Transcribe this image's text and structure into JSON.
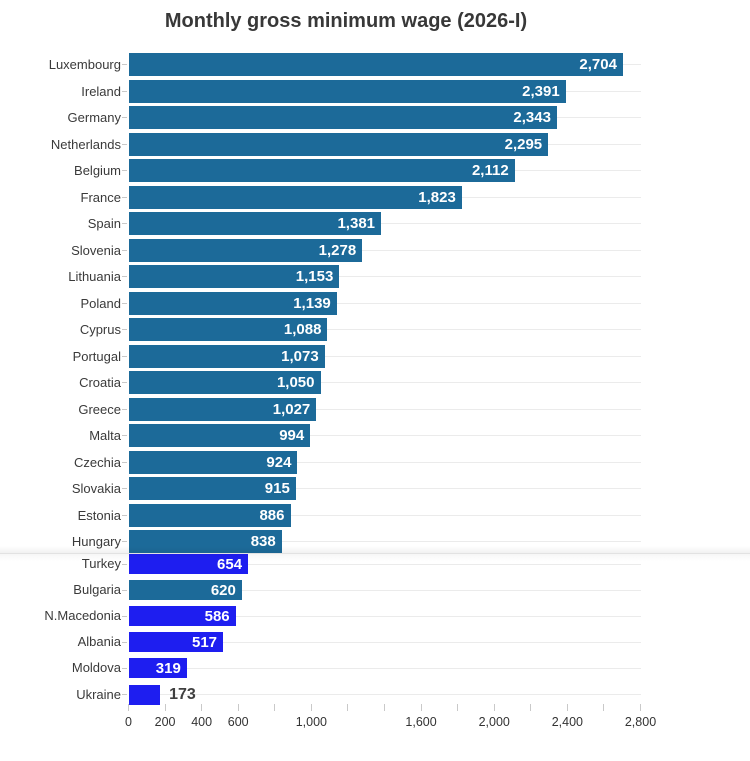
{
  "chart_data": {
    "type": "bar",
    "orientation": "horizontal",
    "title": "Monthly gross minimum wage (2026-I)",
    "xlabel": "",
    "ylabel": "",
    "xlim": [
      0,
      2800
    ],
    "x_tick_step": 200,
    "grid": "horizontal-row-lines",
    "legend": "none",
    "x_tick_labels": [
      {
        "value": 0,
        "label": "0"
      },
      {
        "value": 200,
        "label": "200"
      },
      {
        "value": 400,
        "label": "400"
      },
      {
        "value": 600,
        "label": "600"
      },
      {
        "value": 1000,
        "label": "1,000"
      },
      {
        "value": 1600,
        "label": "1,600"
      },
      {
        "value": 2000,
        "label": "2,000"
      },
      {
        "value": 2400,
        "label": "2,400"
      },
      {
        "value": 2800,
        "label": "2,800"
      }
    ],
    "divider_after_index": 18,
    "rows": [
      {
        "country": "Luxembourg",
        "value": 2704,
        "label": "2,704",
        "group": "eu",
        "label_outside": false
      },
      {
        "country": "Ireland",
        "value": 2391,
        "label": "2,391",
        "group": "eu",
        "label_outside": false
      },
      {
        "country": "Germany",
        "value": 2343,
        "label": "2,343",
        "group": "eu",
        "label_outside": false
      },
      {
        "country": "Netherlands",
        "value": 2295,
        "label": "2,295",
        "group": "eu",
        "label_outside": false
      },
      {
        "country": "Belgium",
        "value": 2112,
        "label": "2,112",
        "group": "eu",
        "label_outside": false
      },
      {
        "country": "France",
        "value": 1823,
        "label": "1,823",
        "group": "eu",
        "label_outside": false
      },
      {
        "country": "Spain",
        "value": 1381,
        "label": "1,381",
        "group": "eu",
        "label_outside": false
      },
      {
        "country": "Slovenia",
        "value": 1278,
        "label": "1,278",
        "group": "eu",
        "label_outside": false
      },
      {
        "country": "Lithuania",
        "value": 1153,
        "label": "1,153",
        "group": "eu",
        "label_outside": false
      },
      {
        "country": "Poland",
        "value": 1139,
        "label": "1,139",
        "group": "eu",
        "label_outside": false
      },
      {
        "country": "Cyprus",
        "value": 1088,
        "label": "1,088",
        "group": "eu",
        "label_outside": false
      },
      {
        "country": "Portugal",
        "value": 1073,
        "label": "1,073",
        "group": "eu",
        "label_outside": false
      },
      {
        "country": "Croatia",
        "value": 1050,
        "label": "1,050",
        "group": "eu",
        "label_outside": false
      },
      {
        "country": "Greece",
        "value": 1027,
        "label": "1,027",
        "group": "eu",
        "label_outside": false
      },
      {
        "country": "Malta",
        "value": 994,
        "label": "994",
        "group": "eu",
        "label_outside": false
      },
      {
        "country": "Czechia",
        "value": 924,
        "label": "924",
        "group": "eu",
        "label_outside": false
      },
      {
        "country": "Slovakia",
        "value": 915,
        "label": "915",
        "group": "eu",
        "label_outside": false
      },
      {
        "country": "Estonia",
        "value": 886,
        "label": "886",
        "group": "eu",
        "label_outside": false
      },
      {
        "country": "Hungary",
        "value": 838,
        "label": "838",
        "group": "eu",
        "label_outside": false
      },
      {
        "country": "Turkey",
        "value": 654,
        "label": "654",
        "group": "non_eu",
        "label_outside": false
      },
      {
        "country": "Bulgaria",
        "value": 620,
        "label": "620",
        "group": "eu",
        "label_outside": false
      },
      {
        "country": "N.Macedonia",
        "value": 586,
        "label": "586",
        "group": "non_eu",
        "label_outside": false
      },
      {
        "country": "Albania",
        "value": 517,
        "label": "517",
        "group": "non_eu",
        "label_outside": false
      },
      {
        "country": "Moldova",
        "value": 319,
        "label": "319",
        "group": "non_eu",
        "label_outside": false
      },
      {
        "country": "Ukraine",
        "value": 173,
        "label": "173",
        "group": "non_eu",
        "label_outside": true
      }
    ],
    "colors": {
      "eu": "#1c6a99",
      "non_eu": "#1e1ef0",
      "value_label_inside": "#ffffff",
      "value_label_outside": "#3f3f3f",
      "title_text": "#383838",
      "axis_text": "#333333",
      "country_text": "#3a3a3a",
      "row_grid_line": "#ebebeb",
      "tick_mark": "#c9c9c9",
      "divider_line": "#e2e2e2",
      "background": "#ffffff"
    }
  }
}
